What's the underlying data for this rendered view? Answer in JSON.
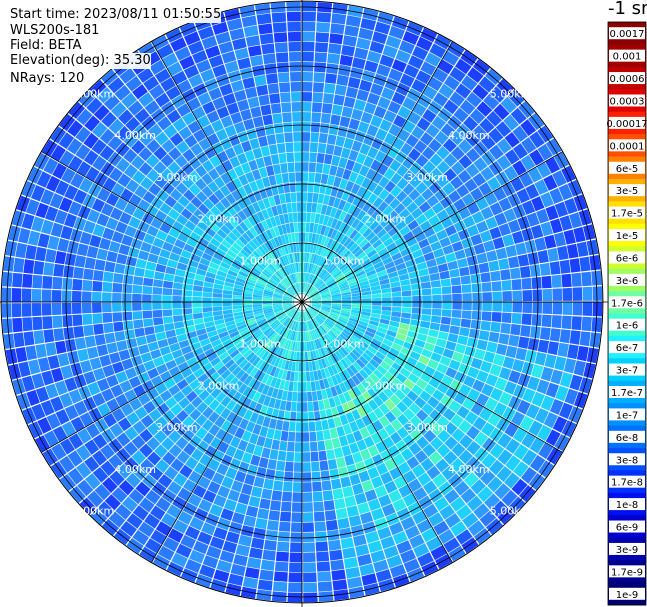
{
  "header": {
    "start_time": "Start time: 2023/08/11 01:50:55",
    "instrument": "WLS200s-181",
    "field": "Field: BETA",
    "elevation": "Elevation(deg): 35.30",
    "nrays": "NRays: 120"
  },
  "colorbar": {
    "unit_label": "-1 sr",
    "ticks": [
      "0.0017",
      "0.001",
      "0.0006",
      "0.0003",
      "0.00017",
      "0.0001",
      "6e-5",
      "3e-5",
      "1.7e-5",
      "1e-5",
      "6e-6",
      "3e-6",
      "1.7e-6",
      "1e-6",
      "6e-7",
      "3e-7",
      "1.7e-7",
      "1e-7",
      "6e-8",
      "3e-8",
      "1.7e-8",
      "1e-8",
      "6e-9",
      "3e-9",
      "1.7e-9",
      "1e-9"
    ],
    "colors": [
      "#8b0000",
      "#a00000",
      "#c00000",
      "#e00000",
      "#ff2000",
      "#ff5000",
      "#ff8000",
      "#ffb000",
      "#ffe000",
      "#ffff00",
      "#d0ff30",
      "#a0ff60",
      "#70ffa0",
      "#40ffd0",
      "#20f0ff",
      "#00d0ff",
      "#00b0ff",
      "#0090ff",
      "#0070ff",
      "#0050ff",
      "#0030ff",
      "#0010f0",
      "#0000d0",
      "#0000b0",
      "#000090",
      "#000070"
    ]
  },
  "chart_data": {
    "type": "heatmap",
    "projection": "polar (PPI scan)",
    "variable": "BETA",
    "n_rays": 120,
    "range_ring_labels": [
      "1.00km",
      "2.00km",
      "3.00km",
      "4.00km",
      "5.00km"
    ],
    "range_rings_km": [
      1,
      2,
      3,
      4,
      5
    ],
    "max_range_km": 5.1,
    "colorscale": "log, 1e-9 to 0.0017 sr^-1",
    "dominant_value_range": [
      "1e-8",
      "1.7e-7"
    ],
    "notes_visible": "near range mostly cyan (~1e-7), outer range mostly blue (~1e-8), green patches to south-east (~1.7e-7 to 3e-7)"
  }
}
